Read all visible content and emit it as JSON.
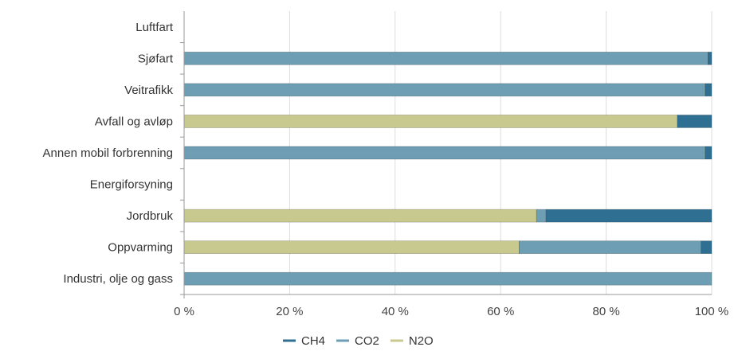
{
  "chart_data": {
    "type": "bar",
    "orientation": "horizontal",
    "stacked": "percent",
    "categories": [
      "Luftfart",
      "Sjøfart",
      "Veitrafikk",
      "Avfall og avløp",
      "Annen mobil forbrenning",
      "Energiforsyning",
      "Jordbruk",
      "Oppvarming",
      "Industri, olje og gass"
    ],
    "series": [
      {
        "name": "N2O",
        "color": "#c8c98e",
        "values": [
          0,
          0,
          0,
          93.5,
          0,
          0,
          66.8,
          63.5,
          0
        ]
      },
      {
        "name": "CO2",
        "color": "#6d9eb3",
        "values": [
          0,
          99.3,
          98.8,
          0,
          98.8,
          0,
          1.8,
          34.5,
          100
        ]
      },
      {
        "name": "CH4",
        "color": "#2e6f92",
        "values": [
          0,
          0.7,
          1.2,
          6.5,
          1.2,
          0,
          31.4,
          2.0,
          0
        ]
      }
    ],
    "xlim": [
      0,
      100
    ],
    "x_ticks": [
      "0 %",
      "20 %",
      "40 %",
      "60 %",
      "80 %",
      "100 %"
    ],
    "grid": true,
    "legend_position": "bottom",
    "legend_order": [
      "CH4",
      "CO2",
      "N2O"
    ]
  }
}
